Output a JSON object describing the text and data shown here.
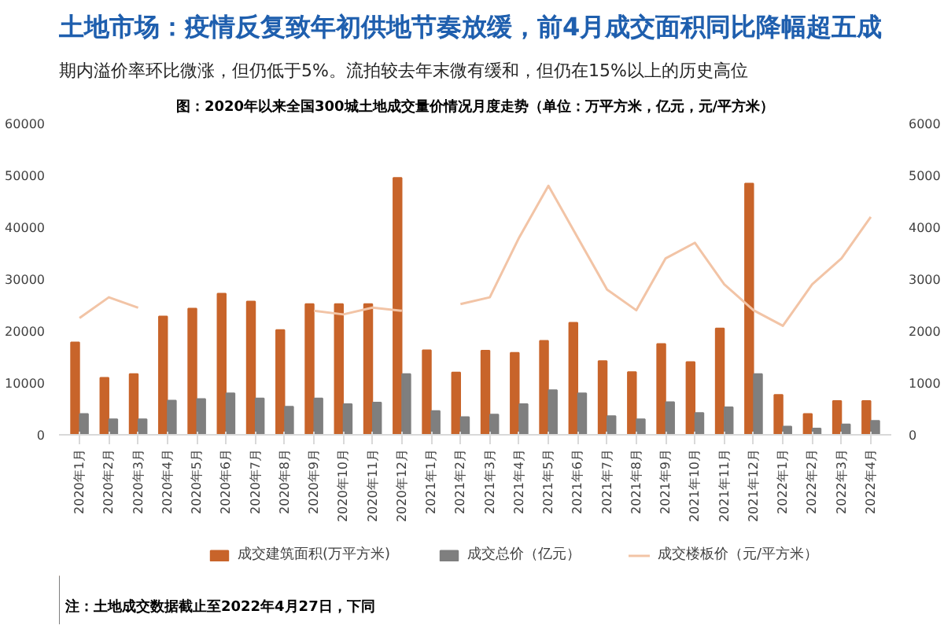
{
  "chart_data": {
    "type": "bar",
    "title": "土地市场：疫情反复致年初供地节奏放缓，前4月成交面积同比降幅超五成",
    "subtitle": "期内溢价率环比微涨，但仍低于5%。流拍较去年末微有缓和，但仍在15%以上的历史高位",
    "annotations": [
      "图：2020年以来全国300城土地成交量价情况月度走势（单位：万平方米，亿元，元/平方米）",
      "注：土地成交数据截止至2022年4月27日，下同"
    ],
    "categories": [
      "2020年1月",
      "2020年2月",
      "2020年3月",
      "2020年4月",
      "2020年5月",
      "2020年6月",
      "2020年7月",
      "2020年8月",
      "2020年9月",
      "2020年10月",
      "2020年11月",
      "2020年12月",
      "2021年1月",
      "2021年2月",
      "2021年3月",
      "2021年4月",
      "2021年5月",
      "2021年6月",
      "2021年7月",
      "2021年8月",
      "2021年9月",
      "2021年10月",
      "2021年11月",
      "2021年12月",
      "2022年1月",
      "2022年2月",
      "2022年3月",
      "2022年4月"
    ],
    "series": [
      {
        "name": "成交建筑面积(万平方米)",
        "color": "#c8642a",
        "values": [
          17800,
          11000,
          11700,
          22800,
          24300,
          27200,
          25700,
          20200,
          25200,
          25200,
          25200,
          49500,
          16300,
          12000,
          16200,
          15800,
          18100,
          21600,
          14200,
          12100,
          17500,
          14000,
          20500,
          48400,
          7700,
          4000,
          6500,
          6500
        ]
      },
      {
        "name": "成交总价（亿元）",
        "color": "#7f7f7f",
        "values": [
          4000,
          3000,
          3000,
          6600,
          6900,
          8000,
          7000,
          5400,
          7000,
          5900,
          6200,
          11700,
          4600,
          3400,
          3900,
          5900,
          8600,
          8000,
          3600,
          3000,
          6300,
          4200,
          5300,
          11700,
          1600,
          1200,
          2000,
          2700
        ]
      },
      {
        "name": "成交楼板价（元/平方米）",
        "type": "line",
        "axis": "y2",
        "color": "#f2c4a6",
        "values": [
          2250,
          2650,
          2450,
          null,
          null,
          null,
          null,
          null,
          2390,
          2320,
          2450,
          2390,
          null,
          2520,
          2650,
          3800,
          4800,
          3800,
          2800,
          2400,
          3400,
          3700,
          2900,
          2400,
          2100,
          2900,
          3400,
          4200
        ]
      }
    ],
    "ylim": [
      0,
      60000
    ],
    "yticks": [
      0,
      10000,
      20000,
      30000,
      40000,
      50000,
      60000
    ],
    "y2lim": [
      0,
      6000
    ],
    "y2ticks": [
      0,
      1000,
      2000,
      3000,
      4000,
      5000,
      6000
    ],
    "grid": false,
    "legend": "bottom"
  }
}
